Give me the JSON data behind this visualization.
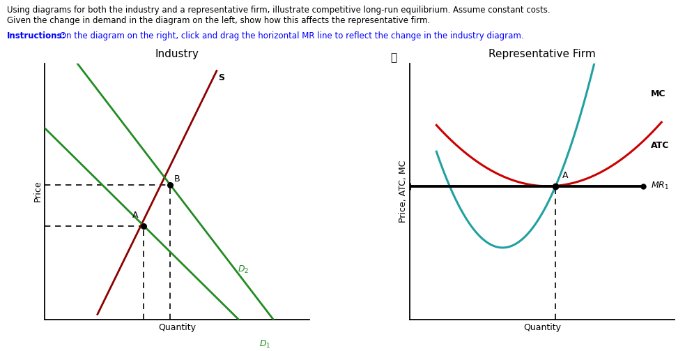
{
  "title_line1": "Using diagrams for both the industry and a representative firm, illustrate competitive long-run equilibrium. Assume constant costs.",
  "title_line2": "Given the change in demand in the diagram on the left, show how this affects the representative firm.",
  "instructions_bold": "Instructions:",
  "instructions_rest": " On the diagram on the right, click and drag the horizontal MR line to reflect the change in the industry diagram.",
  "industry_title": "Industry",
  "firm_title": "Representative Firm",
  "industry_xlabel": "Quantity",
  "firm_xlabel": "Quantity",
  "industry_ylabel": "Price",
  "firm_ylabel": "Price, ATC, MC",
  "supply_color": "#8B0000",
  "d1_color": "#228B22",
  "d2_color": "#228B22",
  "mc_color": "#20A0A0",
  "atc_color": "#CC0000",
  "mr_color": "#000000",
  "dashed_color": "#000000",
  "point_color": "#000000",
  "background_color": "#ffffff",
  "grid_color": "#cccccc",
  "supply_label": "S",
  "d1_label": "D",
  "d2_label": "D",
  "mc_label": "MC",
  "atc_label": "ATC",
  "mr_label": "MR",
  "mr_subscript": "1",
  "d1_subscript": "1",
  "d2_subscript": "2"
}
